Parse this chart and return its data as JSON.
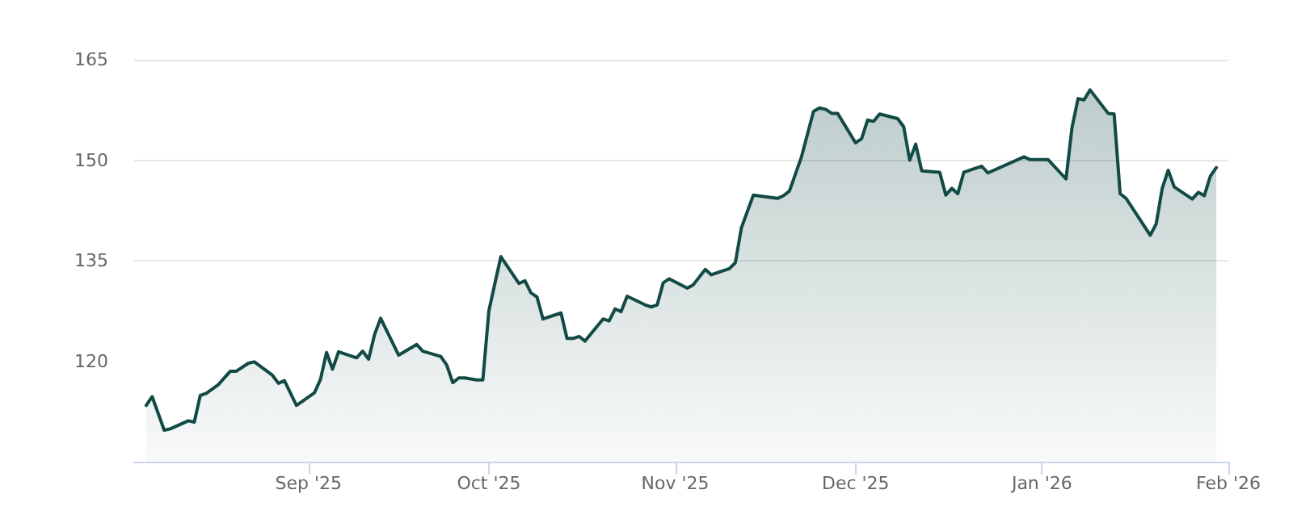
{
  "chart_data": {
    "type": "area",
    "x": [
      "2025-08-05",
      "2025-08-06",
      "2025-08-08",
      "2025-08-09",
      "2025-08-12",
      "2025-08-13",
      "2025-08-14",
      "2025-08-15",
      "2025-08-17",
      "2025-08-19",
      "2025-08-20",
      "2025-08-22",
      "2025-08-23",
      "2025-08-26",
      "2025-08-27",
      "2025-08-28",
      "2025-08-30",
      "2025-09-02",
      "2025-09-03",
      "2025-09-04",
      "2025-09-05",
      "2025-09-06",
      "2025-09-09",
      "2025-09-10",
      "2025-09-11",
      "2025-09-12",
      "2025-09-13",
      "2025-09-16",
      "2025-09-19",
      "2025-09-20",
      "2025-09-23",
      "2025-09-24",
      "2025-09-25",
      "2025-09-26",
      "2025-09-27",
      "2025-09-29",
      "2025-09-30",
      "2025-10-01",
      "2025-10-02",
      "2025-10-03",
      "2025-10-06",
      "2025-10-07",
      "2025-10-08",
      "2025-10-09",
      "2025-10-10",
      "2025-10-13",
      "2025-10-14",
      "2025-10-15",
      "2025-10-16",
      "2025-10-17",
      "2025-10-20",
      "2025-10-21",
      "2025-10-22",
      "2025-10-23",
      "2025-10-24",
      "2025-10-27",
      "2025-10-28",
      "2025-10-29",
      "2025-10-30",
      "2025-10-31",
      "2025-11-03",
      "2025-11-04",
      "2025-11-06",
      "2025-11-07",
      "2025-11-10",
      "2025-11-11",
      "2025-11-12",
      "2025-11-14",
      "2025-11-18",
      "2025-11-19",
      "2025-11-20",
      "2025-11-22",
      "2025-11-24",
      "2025-11-25",
      "2025-11-26",
      "2025-11-27",
      "2025-11-28",
      "2025-12-01",
      "2025-12-02",
      "2025-12-03",
      "2025-12-04",
      "2025-12-05",
      "2025-12-08",
      "2025-12-09",
      "2025-12-10",
      "2025-12-11",
      "2025-12-12",
      "2025-12-15",
      "2025-12-16",
      "2025-12-17",
      "2025-12-18",
      "2025-12-19",
      "2025-12-22",
      "2025-12-23",
      "2025-12-29",
      "2025-12-30",
      "2026-01-02",
      "2026-01-05",
      "2026-01-06",
      "2026-01-07",
      "2026-01-08",
      "2026-01-09",
      "2026-01-12",
      "2026-01-13",
      "2026-01-14",
      "2026-01-15",
      "2026-01-19",
      "2026-01-20",
      "2026-01-21",
      "2026-01-22",
      "2026-01-23",
      "2026-01-26",
      "2026-01-27",
      "2026-01-28",
      "2026-01-29",
      "2026-01-30"
    ],
    "series": [
      {
        "color": "#124a45",
        "values": [
          113.4,
          114.7,
          109.7,
          109.9,
          111.1,
          110.9,
          114.9,
          115.2,
          116.5,
          118.5,
          118.5,
          119.7,
          119.9,
          117.9,
          116.7,
          117.1,
          113.4,
          115.3,
          117.3,
          121.3,
          118.8,
          121.4,
          120.5,
          121.5,
          120.3,
          124.0,
          126.4,
          120.9,
          122.5,
          121.5,
          120.7,
          119.4,
          116.8,
          117.5,
          117.5,
          117.2,
          117.2,
          127.5,
          131.6,
          135.6,
          131.6,
          132.0,
          130.2,
          129.6,
          126.3,
          127.2,
          123.4,
          123.4,
          123.7,
          123.0,
          126.3,
          126.0,
          127.8,
          127.4,
          129.7,
          128.4,
          128.1,
          128.4,
          131.7,
          132.3,
          130.9,
          131.4,
          133.7,
          132.9,
          133.8,
          134.7,
          139.9,
          144.8,
          144.3,
          144.7,
          145.4,
          150.5,
          157.3,
          157.8,
          157.6,
          157.0,
          157.0,
          152.6,
          153.2,
          156.0,
          155.8,
          156.9,
          156.2,
          155.0,
          150.0,
          152.4,
          148.4,
          148.2,
          144.8,
          145.8,
          145.0,
          148.2,
          149.1,
          148.1,
          150.5,
          150.1,
          150.1,
          147.2,
          154.9,
          159.2,
          159.0,
          160.5,
          157.0,
          156.9,
          145.0,
          144.3,
          138.8,
          140.5,
          145.8,
          148.5,
          146.0,
          144.2,
          145.2,
          144.7,
          147.6,
          148.9
        ]
      }
    ],
    "xlim": [
      "2025-08-03",
      "2026-02-01"
    ],
    "xticks": [
      {
        "value": "2025-09-01",
        "label": "Sep '25"
      },
      {
        "value": "2025-10-01",
        "label": "Oct '25"
      },
      {
        "value": "2025-11-01",
        "label": "Nov '25"
      },
      {
        "value": "2025-12-01",
        "label": "Dec '25"
      },
      {
        "value": "2026-01-01",
        "label": "Jan '26"
      },
      {
        "value": "2026-02-01",
        "label": "Feb '26"
      }
    ],
    "ylim": [
      105,
      165
    ],
    "yticks": [
      120,
      135,
      150,
      165
    ],
    "grid": "y",
    "marker": "none",
    "line_style": "solid"
  }
}
